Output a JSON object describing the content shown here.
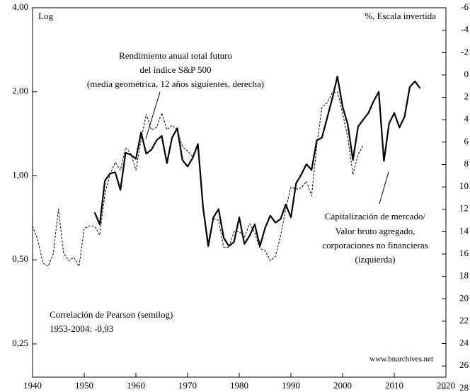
{
  "chart_data": {
    "type": "line",
    "annotations": {
      "left_axis": "Log",
      "right_axis": "%, Escala invertida",
      "sp500": [
        "Rendimiento anual total futuro",
        "del índice S&P 500",
        "(media geométrica, 12 años siguientes, derecha)"
      ],
      "market_cap": [
        "Capitalización de mercado/",
        "Valor bruto agregado,",
        "corporaciones no financieras",
        "(izquierda)"
      ],
      "correlation": [
        "Correlación de Pearson (semilog)",
        "1953-2004: -0,93"
      ],
      "source": "www.bnarchives.net"
    },
    "xlim": [
      1940,
      2020
    ],
    "xticks": [
      1940,
      1950,
      1960,
      1970,
      1980,
      1990,
      2000,
      2010,
      2020
    ],
    "ylim": [
      0.19,
      4
    ],
    "y_log": true,
    "yticks": [
      {
        "value": 0.25,
        "label": "0,25"
      },
      {
        "value": 0.5,
        "label": "0,50"
      },
      {
        "value": 1,
        "label": "1,00"
      },
      {
        "value": 2,
        "label": "2,00"
      },
      {
        "value": 4,
        "label": "4,00"
      }
    ],
    "y2lim": [
      -6,
      27
    ],
    "y2_inverted": true,
    "y2ticks": [
      -6,
      -4,
      -2,
      0,
      2,
      4,
      6,
      8,
      10,
      12,
      14,
      16,
      18,
      20,
      22,
      24,
      26,
      28
    ],
    "series": [
      {
        "name": "Capitalización de mercado/Valor bruto agregado",
        "color": "#000000",
        "style": "solid",
        "axis": "y",
        "x": [
          1952,
          1953,
          1954,
          1955,
          1956,
          1957,
          1958,
          1959,
          1960,
          1961,
          1962,
          1963,
          1964,
          1965,
          1966,
          1967,
          1968,
          1969,
          1970,
          1971,
          1972,
          1973,
          1974,
          1975,
          1976,
          1977,
          1978,
          1979,
          1980,
          1981,
          1982,
          1983,
          1984,
          1985,
          1986,
          1987,
          1988,
          1989,
          1990,
          1991,
          1992,
          1993,
          1994,
          1995,
          1996,
          1997,
          1998,
          1999,
          2000,
          2001,
          2002,
          2003,
          2004,
          2005,
          2006,
          2007,
          2008,
          2009,
          2010,
          2011,
          2012,
          2013,
          2014,
          2015
        ],
        "values": [
          0.74,
          0.67,
          0.96,
          1.02,
          1.03,
          0.89,
          1.21,
          1.19,
          1.15,
          1.43,
          1.2,
          1.24,
          1.34,
          1.39,
          1.11,
          1.37,
          1.48,
          1.14,
          1.08,
          1.16,
          1.3,
          0.77,
          0.56,
          0.71,
          0.76,
          0.6,
          0.56,
          0.58,
          0.71,
          0.57,
          0.61,
          0.67,
          0.56,
          0.65,
          0.72,
          0.68,
          0.7,
          0.79,
          0.71,
          0.94,
          1.01,
          1.1,
          1.05,
          1.34,
          1.37,
          1.61,
          1.89,
          2.27,
          1.77,
          1.53,
          1.14,
          1.5,
          1.59,
          1.68,
          1.85,
          2.0,
          1.13,
          1.54,
          1.68,
          1.49,
          1.63,
          2.08,
          2.18,
          2.06
        ]
      },
      {
        "name": "Rendimiento anual total futuro del índice S&P 500",
        "color": "#000000",
        "style": "dashed",
        "axis": "y2",
        "x": [
          1940,
          1941,
          1942,
          1943,
          1944,
          1945,
          1946,
          1947,
          1948,
          1949,
          1950,
          1951,
          1952,
          1953,
          1954,
          1955,
          1956,
          1957,
          1958,
          1959,
          1960,
          1961,
          1962,
          1963,
          1964,
          1965,
          1966,
          1967,
          1968,
          1969,
          1970,
          1971,
          1972,
          1973,
          1974,
          1975,
          1976,
          1977,
          1978,
          1979,
          1980,
          1981,
          1982,
          1983,
          1984,
          1985,
          1986,
          1987,
          1988,
          1989,
          1990,
          1991,
          1992,
          1993,
          1994,
          1995,
          1996,
          1997,
          1998,
          1999,
          2000,
          2001,
          2002,
          2003,
          2004
        ],
        "values": [
          13.5,
          14.7,
          16.8,
          17.1,
          16.0,
          12.0,
          15.9,
          16.6,
          16.3,
          17.1,
          13.7,
          13.5,
          13.5,
          14.3,
          10.6,
          8.9,
          7.8,
          8.5,
          6.5,
          7.0,
          8.5,
          5.8,
          3.5,
          4.9,
          4.7,
          3.4,
          4.9,
          4.5,
          4.9,
          6.4,
          6.8,
          7.3,
          6.2,
          11.8,
          14.9,
          12.8,
          13.0,
          15.4,
          15.4,
          14.0,
          14.0,
          14.5,
          13.3,
          14.1,
          15.5,
          15.7,
          16.6,
          16.2,
          14.4,
          12.0,
          10.0,
          10.2,
          10.1,
          9.5,
          10.8,
          6.3,
          2.9,
          2.5,
          1.6,
          1.5,
          3.4,
          5.6,
          8.9,
          7.1,
          6.3
        ]
      }
    ]
  }
}
